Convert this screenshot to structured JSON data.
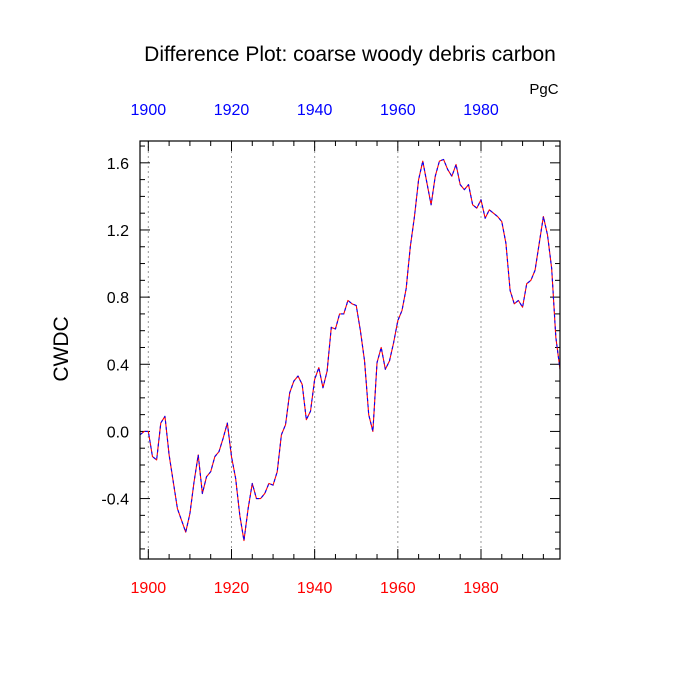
{
  "chart_data": {
    "type": "line",
    "title": "Difference Plot: coarse woody debris carbon",
    "units": "PgC",
    "xlabel": "",
    "ylabel": "CWDC",
    "xlim": [
      1898,
      1999
    ],
    "ylim": [
      -0.76,
      1.73
    ],
    "x_ticks": [
      1900,
      1920,
      1940,
      1960,
      1980
    ],
    "y_ticks": [
      -0.4,
      0.0,
      0.4,
      0.8,
      1.2,
      1.6
    ],
    "y_tick_labels": [
      "-0.4",
      "0.0",
      "0.4",
      "0.8",
      "1.2",
      "1.6"
    ],
    "x_minor_step": 5,
    "y_minor_step": 0.1,
    "grid": "vertical dotted at major x ticks",
    "colors": {
      "bottom_axis_labels": "#ff0000",
      "top_axis_labels": "#0000ff",
      "series_a": "#ff0000",
      "series_b": "#0000ff"
    },
    "x": [
      1898,
      1899,
      1900,
      1901,
      1902,
      1903,
      1904,
      1905,
      1906,
      1907,
      1908,
      1909,
      1910,
      1911,
      1912,
      1913,
      1914,
      1915,
      1916,
      1917,
      1918,
      1919,
      1920,
      1921,
      1922,
      1923,
      1924,
      1925,
      1926,
      1927,
      1928,
      1929,
      1930,
      1931,
      1932,
      1933,
      1934,
      1935,
      1936,
      1937,
      1938,
      1939,
      1940,
      1941,
      1942,
      1943,
      1944,
      1945,
      1946,
      1947,
      1948,
      1949,
      1950,
      1951,
      1952,
      1953,
      1954,
      1955,
      1956,
      1957,
      1958,
      1959,
      1960,
      1961,
      1962,
      1963,
      1964,
      1965,
      1966,
      1967,
      1968,
      1969,
      1970,
      1971,
      1972,
      1973,
      1974,
      1975,
      1976,
      1977,
      1978,
      1979,
      1980,
      1981,
      1982,
      1983,
      1984,
      1985,
      1986,
      1987,
      1988,
      1989,
      1990,
      1991,
      1992,
      1993,
      1994,
      1995,
      1996,
      1997,
      1998,
      1999
    ],
    "series": [
      {
        "values": [
          -0.02,
          0.0,
          0.0,
          -0.15,
          -0.17,
          0.05,
          0.09,
          -0.14,
          -0.3,
          -0.46,
          -0.53,
          -0.6,
          -0.49,
          -0.3,
          -0.14,
          -0.37,
          -0.27,
          -0.24,
          -0.15,
          -0.12,
          -0.04,
          0.05,
          -0.15,
          -0.28,
          -0.5,
          -0.65,
          -0.46,
          -0.31,
          -0.4,
          -0.4,
          -0.37,
          -0.31,
          -0.32,
          -0.24,
          -0.02,
          0.04,
          0.23,
          0.3,
          0.33,
          0.28,
          0.07,
          0.12,
          0.31,
          0.38,
          0.26,
          0.36,
          0.62,
          0.61,
          0.7,
          0.7,
          0.78,
          0.76,
          0.75,
          0.6,
          0.42,
          0.1,
          0.0,
          0.41,
          0.5,
          0.37,
          0.42,
          0.53,
          0.66,
          0.72,
          0.85,
          1.1,
          1.28,
          1.5,
          1.61,
          1.48,
          1.35,
          1.52,
          1.61,
          1.62,
          1.56,
          1.52,
          1.59,
          1.47,
          1.44,
          1.47,
          1.35,
          1.33,
          1.38,
          1.27,
          1.32,
          1.3,
          1.28,
          1.25,
          1.12,
          0.84,
          0.76,
          0.78,
          0.74,
          0.88,
          0.9,
          0.96,
          1.12,
          1.28,
          1.17,
          0.97,
          0.56,
          0.37
        ]
      },
      {
        "values": [
          -0.02,
          0.0,
          0.0,
          -0.15,
          -0.17,
          0.05,
          0.09,
          -0.14,
          -0.3,
          -0.46,
          -0.53,
          -0.6,
          -0.49,
          -0.3,
          -0.14,
          -0.37,
          -0.27,
          -0.24,
          -0.15,
          -0.12,
          -0.04,
          0.05,
          -0.15,
          -0.28,
          -0.5,
          -0.65,
          -0.46,
          -0.31,
          -0.4,
          -0.4,
          -0.37,
          -0.31,
          -0.32,
          -0.24,
          -0.02,
          0.04,
          0.23,
          0.3,
          0.33,
          0.28,
          0.07,
          0.12,
          0.31,
          0.38,
          0.26,
          0.36,
          0.62,
          0.61,
          0.7,
          0.7,
          0.78,
          0.76,
          0.75,
          0.6,
          0.42,
          0.1,
          0.0,
          0.41,
          0.5,
          0.37,
          0.42,
          0.53,
          0.66,
          0.72,
          0.85,
          1.1,
          1.28,
          1.5,
          1.61,
          1.48,
          1.35,
          1.52,
          1.61,
          1.62,
          1.56,
          1.52,
          1.59,
          1.47,
          1.44,
          1.47,
          1.35,
          1.33,
          1.38,
          1.27,
          1.32,
          1.3,
          1.28,
          1.25,
          1.12,
          0.84,
          0.76,
          0.78,
          0.74,
          0.88,
          0.9,
          0.96,
          1.12,
          1.28,
          1.17,
          0.97,
          0.56,
          0.37
        ]
      }
    ]
  }
}
